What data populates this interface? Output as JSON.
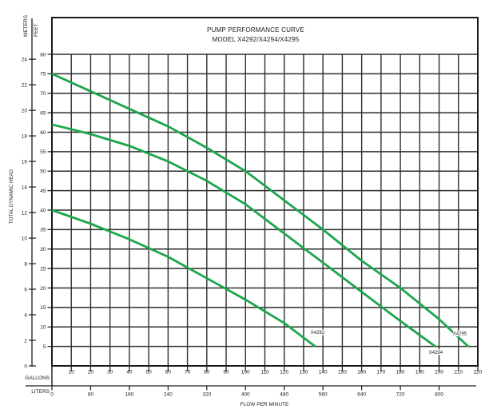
{
  "title": {
    "line1": "PUMP PERFORMANCE CURVE",
    "line2": "MODEL X4292/X4294/X4295"
  },
  "labels": {
    "meters": "METERS",
    "feet": "FEET",
    "y_axis": "TOTAL DYNAMIC HEAD",
    "gallons": "GALLONS",
    "liters": "LITERS",
    "x_axis": "FLOW PER MINUTE"
  },
  "chart_data": {
    "type": "line",
    "title": "PUMP PERFORMANCE CURVE MODEL X4292/X4294/X4295",
    "xlabel": "FLOW PER MINUTE (GALLONS / LITERS)",
    "ylabel": "TOTAL DYNAMIC HEAD (FEET / METERS)",
    "grid": "on",
    "x_gallons": {
      "min": 0,
      "max": 220,
      "ticks": [
        10,
        20,
        30,
        40,
        50,
        60,
        70,
        80,
        90,
        100,
        110,
        120,
        130,
        140,
        150,
        160,
        170,
        180,
        190,
        200,
        210,
        220
      ]
    },
    "x_liters": {
      "ticks": [
        0,
        80,
        160,
        240,
        320,
        400,
        480,
        560,
        640,
        720,
        800
      ],
      "gallons_per_liter_scale": 0.25
    },
    "y_feet": {
      "min": 0,
      "max": 80,
      "ticks": [
        5,
        10,
        15,
        20,
        25,
        30,
        35,
        40,
        45,
        50,
        55,
        60,
        65,
        70,
        75,
        80
      ]
    },
    "y_meters": {
      "ticks": [
        0,
        2,
        4,
        6,
        8,
        10,
        12,
        14,
        16,
        18,
        20,
        22,
        24
      ],
      "feet_per_meter": 3.28084
    },
    "series": [
      {
        "name": "X4295",
        "points_gpm_ft": [
          [
            0,
            75
          ],
          [
            20,
            70.5
          ],
          [
            40,
            66
          ],
          [
            60,
            61.5
          ],
          [
            80,
            56
          ],
          [
            100,
            50
          ],
          [
            120,
            42.5
          ],
          [
            140,
            35
          ],
          [
            160,
            27
          ],
          [
            180,
            20
          ],
          [
            200,
            12
          ],
          [
            215,
            5
          ]
        ],
        "label_pos": {
          "gpm": 210.7,
          "ft": 7.9
        }
      },
      {
        "name": "X4294",
        "points_gpm_ft": [
          [
            0,
            62
          ],
          [
            20,
            59.5
          ],
          [
            40,
            56.5
          ],
          [
            60,
            52.5
          ],
          [
            80,
            47.5
          ],
          [
            100,
            41.5
          ],
          [
            120,
            34
          ],
          [
            140,
            26.5
          ],
          [
            160,
            19
          ],
          [
            180,
            11.5
          ],
          [
            198,
            5
          ]
        ],
        "label_pos": {
          "gpm": 198.3,
          "ft": 3.1
        }
      },
      {
        "name": "X4292",
        "points_gpm_ft": [
          [
            0,
            40
          ],
          [
            20,
            36.5
          ],
          [
            40,
            32.5
          ],
          [
            60,
            28
          ],
          [
            80,
            22.5
          ],
          [
            100,
            17
          ],
          [
            120,
            11
          ],
          [
            136,
            5
          ]
        ],
        "label_pos": {
          "gpm": 137.2,
          "ft": 8.2
        }
      }
    ],
    "colors": {
      "curve": "#1CA64B",
      "grid": "#2e2e2e",
      "border": "#1a1a1a",
      "text": "#1a1a1a"
    }
  }
}
